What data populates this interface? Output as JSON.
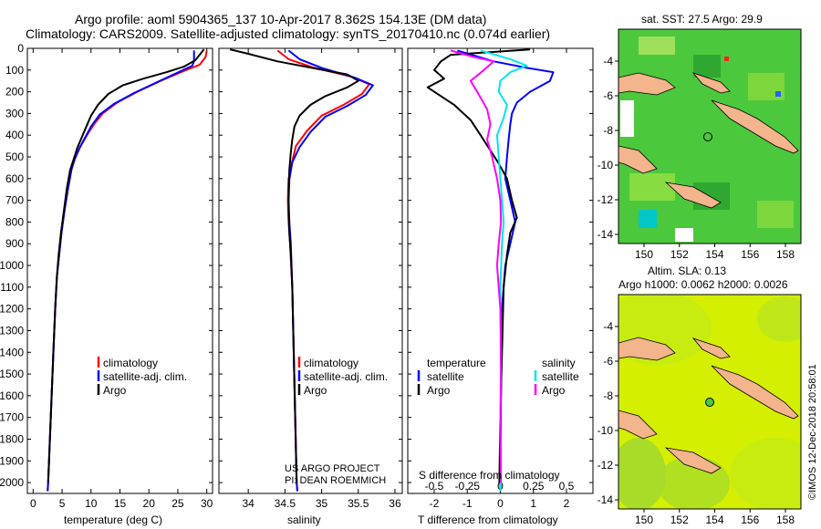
{
  "title": {
    "line1": "Argo profile: aoml 5904365_137 10-Apr-2017 8.362S 154.13E (DM data)",
    "line2": "Climatology: CARS2009. Satellite-adjusted climatology: synTS_20170410.nc (0.074d earlier)"
  },
  "colors": {
    "climatology": "#ff0000",
    "satellite": "#0000ff",
    "argo": "#000000",
    "sat_salinity": "#00e5ee",
    "argo_salinity": "#ff00ff",
    "land": "#f4b48c",
    "sst_field": "#4cc83c",
    "sla_field": "#d4f000"
  },
  "depth_axis": {
    "ylim": [
      0,
      2050
    ],
    "ticks": [
      "0",
      "100",
      "200",
      "300",
      "400",
      "500",
      "600",
      "700",
      "800",
      "900",
      "1000",
      "1100",
      "1200",
      "1300",
      "1400",
      "1500",
      "1600",
      "1700",
      "1800",
      "1900",
      "2000"
    ]
  },
  "chart_data": [
    {
      "type": "line",
      "name": "temperature",
      "xlabel": "temperature (deg C)",
      "xlim": [
        -1,
        31
      ],
      "x_ticks": [
        {
          "v": 0,
          "label": "0"
        },
        {
          "v": 5,
          "label": "5"
        },
        {
          "v": 10,
          "label": "10"
        },
        {
          "v": 15,
          "label": "15"
        },
        {
          "v": 20,
          "label": "20"
        },
        {
          "v": 25,
          "label": "25"
        },
        {
          "v": 30,
          "label": "30"
        }
      ],
      "legend": [
        "climatology",
        "satellite-adj. clim.",
        "Argo"
      ],
      "series": [
        {
          "name": "climatology",
          "color": "#ff0000",
          "points": [
            [
              30.0,
              10
            ],
            [
              29.8,
              40
            ],
            [
              28.8,
              75
            ],
            [
              26,
              105
            ],
            [
              22,
              150
            ],
            [
              18,
              200
            ],
            [
              14.5,
              250
            ],
            [
              12,
              300
            ],
            [
              10.5,
              350
            ],
            [
              9.3,
              400
            ],
            [
              8.2,
              450
            ],
            [
              7.3,
              500
            ],
            [
              6.7,
              550
            ],
            [
              6,
              650
            ],
            [
              5.4,
              750
            ],
            [
              4.9,
              850
            ],
            [
              4.5,
              950
            ],
            [
              4.1,
              1050
            ],
            [
              3.8,
              1200
            ],
            [
              3.5,
              1400
            ],
            [
              3.2,
              1600
            ],
            [
              2.9,
              1800
            ],
            [
              2.6,
              2000
            ],
            [
              2.5,
              2040
            ]
          ]
        },
        {
          "name": "satellite-adj. clim.",
          "color": "#0000ff",
          "points": [
            [
              27.8,
              10
            ],
            [
              27.8,
              60
            ],
            [
              27.5,
              80
            ],
            [
              25.5,
              105
            ],
            [
              21.5,
              155
            ],
            [
              17.5,
              205
            ],
            [
              14,
              255
            ],
            [
              11.5,
              305
            ],
            [
              10,
              360
            ],
            [
              9,
              410
            ],
            [
              8,
              460
            ],
            [
              7.2,
              510
            ],
            [
              6.6,
              560
            ],
            [
              6,
              650
            ],
            [
              5.4,
              750
            ],
            [
              4.9,
              850
            ],
            [
              4.5,
              950
            ],
            [
              4.1,
              1050
            ],
            [
              3.8,
              1200
            ],
            [
              3.5,
              1400
            ],
            [
              3.2,
              1600
            ],
            [
              2.9,
              1800
            ],
            [
              2.6,
              2000
            ],
            [
              2.5,
              2040
            ]
          ]
        },
        {
          "name": "Argo",
          "color": "#000000",
          "points": [
            [
              29.5,
              5
            ],
            [
              28,
              55
            ],
            [
              26,
              85
            ],
            [
              23,
              110
            ],
            [
              19,
              140
            ],
            [
              15.5,
              170
            ],
            [
              13,
              210
            ],
            [
              11.2,
              260
            ],
            [
              10,
              310
            ],
            [
              9.2,
              360
            ],
            [
              8.4,
              410
            ],
            [
              7.6,
              460
            ],
            [
              7,
              510
            ],
            [
              6.4,
              560
            ],
            [
              5.8,
              650
            ],
            [
              5.3,
              750
            ],
            [
              4.8,
              850
            ],
            [
              4.4,
              950
            ],
            [
              4.1,
              1050
            ],
            [
              3.8,
              1200
            ],
            [
              3.5,
              1400
            ],
            [
              3.2,
              1600
            ],
            [
              2.9,
              1800
            ],
            [
              2.6,
              2000
            ]
          ]
        }
      ]
    },
    {
      "type": "line",
      "name": "salinity",
      "xlabel": "salinity",
      "xlim": [
        33.6,
        36.1
      ],
      "x_ticks": [
        {
          "v": 34,
          "label": "34"
        },
        {
          "v": 34.5,
          "label": "34.5"
        },
        {
          "v": 35,
          "label": "35"
        },
        {
          "v": 35.5,
          "label": "35.5"
        },
        {
          "v": 36,
          "label": "36"
        }
      ],
      "legend": [
        "climatology",
        "satellite-adj. clim.",
        "Argo"
      ],
      "annotation": [
        "US ARGO PROJECT",
        "PI: DEAN ROEMMICH"
      ],
      "series": [
        {
          "name": "climatology",
          "color": "#ff0000",
          "points": [
            [
              34.4,
              10
            ],
            [
              34.55,
              50
            ],
            [
              34.9,
              90
            ],
            [
              35.4,
              130
            ],
            [
              35.65,
              165
            ],
            [
              35.55,
              210
            ],
            [
              35.3,
              260
            ],
            [
              35.0,
              310
            ],
            [
              34.8,
              380
            ],
            [
              34.65,
              450
            ],
            [
              34.6,
              520
            ],
            [
              34.55,
              600
            ],
            [
              34.54,
              700
            ],
            [
              34.55,
              800
            ],
            [
              34.57,
              900
            ],
            [
              34.6,
              1100
            ],
            [
              34.62,
              1400
            ],
            [
              34.64,
              1700
            ],
            [
              34.66,
              2000
            ],
            [
              34.67,
              2040
            ]
          ]
        },
        {
          "name": "satellite-adj. clim.",
          "color": "#0000ff",
          "points": [
            [
              34.55,
              10
            ],
            [
              34.7,
              50
            ],
            [
              35.0,
              90
            ],
            [
              35.45,
              135
            ],
            [
              35.7,
              170
            ],
            [
              35.6,
              215
            ],
            [
              35.35,
              265
            ],
            [
              35.05,
              315
            ],
            [
              34.85,
              385
            ],
            [
              34.7,
              455
            ],
            [
              34.6,
              525
            ],
            [
              34.56,
              605
            ],
            [
              34.55,
              700
            ],
            [
              34.56,
              800
            ],
            [
              34.58,
              900
            ],
            [
              34.6,
              1100
            ],
            [
              34.62,
              1400
            ],
            [
              34.64,
              1700
            ],
            [
              34.66,
              2000
            ],
            [
              34.67,
              2040
            ]
          ]
        },
        {
          "name": "Argo",
          "color": "#000000",
          "points": [
            [
              33.75,
              5
            ],
            [
              34.0,
              25
            ],
            [
              34.4,
              60
            ],
            [
              34.95,
              95
            ],
            [
              35.35,
              120
            ],
            [
              35.5,
              150
            ],
            [
              35.35,
              180
            ],
            [
              35.05,
              220
            ],
            [
              34.85,
              260
            ],
            [
              34.7,
              310
            ],
            [
              34.63,
              360
            ],
            [
              34.6,
              420
            ],
            [
              34.58,
              480
            ],
            [
              34.56,
              560
            ],
            [
              34.55,
              650
            ],
            [
              34.55,
              750
            ],
            [
              34.56,
              850
            ],
            [
              34.58,
              950
            ],
            [
              34.6,
              1100
            ],
            [
              34.62,
              1400
            ],
            [
              34.64,
              1700
            ],
            [
              34.66,
              2000
            ]
          ]
        }
      ]
    },
    {
      "type": "line",
      "name": "difference",
      "xlabel": "T difference from climatology",
      "xlabel_top": "S difference from climatology",
      "xlim": [
        -2.8,
        2.8
      ],
      "x_ticks": [
        {
          "v": -2,
          "label": "-2"
        },
        {
          "v": -1,
          "label": "-1"
        },
        {
          "v": 0,
          "label": "0"
        },
        {
          "v": 1,
          "label": "1"
        },
        {
          "v": 2,
          "label": "2"
        }
      ],
      "x_ticks_top": [
        {
          "v": -2,
          "label": "-0.5"
        },
        {
          "v": -1,
          "label": "-0.25"
        },
        {
          "v": 0,
          "label": "0"
        },
        {
          "v": 1,
          "label": "0.25"
        },
        {
          "v": 2,
          "label": "0.5"
        }
      ],
      "legend_temperature": [
        "temperature",
        "satellite",
        "Argo"
      ],
      "legend_salinity": [
        "salinity",
        "satellite",
        "Argo"
      ],
      "series": [
        {
          "name": "T satellite",
          "color": "#0000ff",
          "points": [
            [
              -1.3,
              10
            ],
            [
              -0.2,
              60
            ],
            [
              0.8,
              90
            ],
            [
              1.6,
              110
            ],
            [
              1.5,
              150
            ],
            [
              0.9,
              200
            ],
            [
              0.5,
              250
            ],
            [
              0.35,
              300
            ],
            [
              0.3,
              350
            ],
            [
              0.25,
              420
            ],
            [
              0.2,
              500
            ],
            [
              0.15,
              600
            ],
            [
              0.3,
              700
            ],
            [
              0.45,
              800
            ],
            [
              0.3,
              900
            ],
            [
              0.15,
              1000
            ],
            [
              0.05,
              1200
            ],
            [
              0.02,
              1600
            ],
            [
              0.0,
              2040
            ]
          ]
        },
        {
          "name": "T Argo",
          "color": "#000000",
          "points": [
            [
              0.9,
              5
            ],
            [
              -1.5,
              30
            ],
            [
              -1.8,
              60
            ],
            [
              -2.0,
              100
            ],
            [
              -1.7,
              140
            ],
            [
              -2.2,
              180
            ],
            [
              -1.4,
              260
            ],
            [
              -0.9,
              330
            ],
            [
              -0.6,
              400
            ],
            [
              -0.3,
              470
            ],
            [
              -0.05,
              530
            ],
            [
              0.2,
              600
            ],
            [
              0.35,
              700
            ],
            [
              0.5,
              780
            ],
            [
              0.3,
              850
            ],
            [
              0.2,
              950
            ],
            [
              0.1,
              1100
            ],
            [
              0.05,
              1400
            ],
            [
              0.0,
              1700
            ],
            [
              -0.03,
              2000
            ]
          ]
        },
        {
          "name": "S satellite",
          "color": "#00e5ee",
          "points": [
            [
              -0.6,
              10
            ],
            [
              0.3,
              50
            ],
            [
              0.8,
              80
            ],
            [
              0.3,
              110
            ],
            [
              0.0,
              150
            ],
            [
              -0.05,
              200
            ],
            [
              0.2,
              260
            ],
            [
              0.1,
              320
            ],
            [
              -0.1,
              400
            ],
            [
              -0.05,
              500
            ],
            [
              0.0,
              600
            ],
            [
              0.05,
              700
            ],
            [
              0.1,
              800
            ],
            [
              0.05,
              900
            ],
            [
              0.0,
              1100
            ],
            [
              0.02,
              1400
            ],
            [
              0.0,
              1700
            ],
            [
              0.02,
              2000
            ],
            [
              0.0,
              2040
            ]
          ]
        },
        {
          "name": "S Argo",
          "color": "#ff00ff",
          "points": [
            [
              -1.5,
              10
            ],
            [
              -0.8,
              40
            ],
            [
              -0.2,
              60
            ],
            [
              -0.5,
              100
            ],
            [
              -0.9,
              150
            ],
            [
              -0.7,
              200
            ],
            [
              -0.4,
              280
            ],
            [
              -0.3,
              350
            ],
            [
              -0.4,
              420
            ],
            [
              -0.25,
              500
            ],
            [
              -0.1,
              600
            ],
            [
              0.0,
              700
            ],
            [
              0.02,
              800
            ],
            [
              -0.05,
              900
            ],
            [
              -0.1,
              1000
            ],
            [
              0.0,
              1200
            ],
            [
              0.02,
              1500
            ],
            [
              0.0,
              1800
            ],
            [
              0.02,
              2000
            ]
          ]
        }
      ]
    }
  ],
  "maps": {
    "sst": {
      "title": "sat. SST: 27.5 Argo: 29.9",
      "y_ticks": [
        "-4",
        "-6",
        "-8",
        "-10",
        "-12",
        "-14"
      ],
      "x_ticks": [
        "150",
        "152",
        "154",
        "156",
        "158"
      ]
    },
    "sla": {
      "title1": "Altim. SLA: 0.13",
      "title2": "Argo h1000: 0.0062 h2000: 0.0026",
      "y_ticks": [
        "-4",
        "-6",
        "-8",
        "-10",
        "-12",
        "-14"
      ],
      "x_ticks": [
        "150",
        "152",
        "154",
        "156",
        "158"
      ]
    },
    "credit": "©IMOS 12-Dec-2018 20:58:01"
  }
}
